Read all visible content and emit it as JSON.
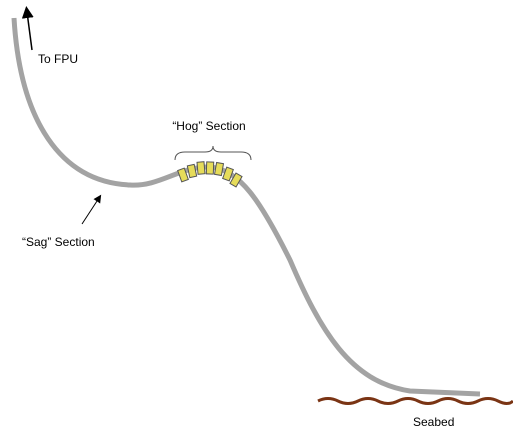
{
  "labels": {
    "fpu": "To FPU",
    "hog": "“Hog” Section",
    "sag": "“Sag” Section",
    "seabed": "Seabed"
  }
}
